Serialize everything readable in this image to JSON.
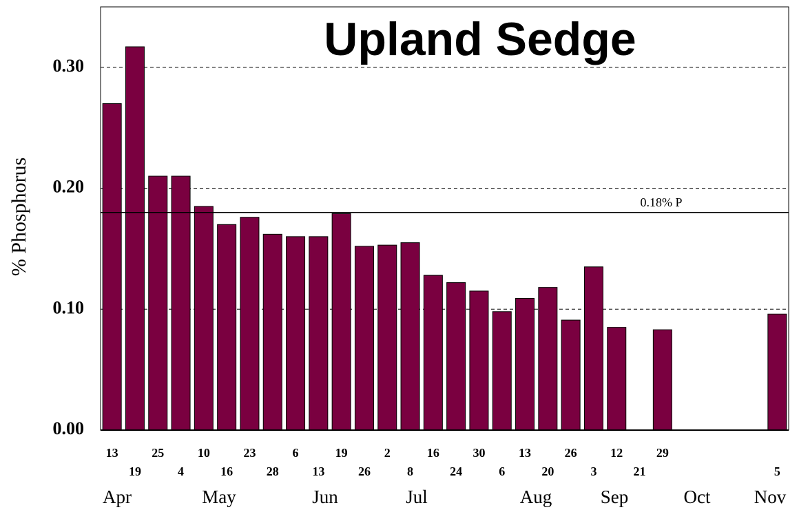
{
  "chart_data": {
    "type": "bar",
    "title": "Upland Sedge",
    "y_label": "% Phosphorus",
    "categories": [
      "13",
      "19",
      "25",
      "4",
      "10",
      "16",
      "23",
      "28",
      "6",
      "13",
      "19",
      "26",
      "2",
      "8",
      "16",
      "24",
      "30",
      "6",
      "13",
      "20",
      "26",
      "3",
      "12",
      "21",
      "29",
      null,
      null,
      null,
      null,
      "5"
    ],
    "values": [
      0.27,
      0.317,
      0.21,
      0.21,
      0.185,
      0.17,
      0.176,
      0.162,
      0.16,
      0.16,
      0.179,
      0.152,
      0.153,
      0.155,
      0.128,
      0.122,
      0.115,
      0.098,
      0.109,
      0.118,
      0.091,
      0.135,
      0.085,
      null,
      0.083,
      null,
      null,
      null,
      null,
      0.096
    ],
    "months": [
      "Apr",
      "May",
      "Jun",
      "Jul",
      "Aug",
      "Sep",
      "Oct",
      "Nov"
    ],
    "color": "#7a0040",
    "ylim": [
      0,
      0.35
    ],
    "yticks": [
      {
        "value": 0,
        "label": "0.00"
      },
      {
        "value": 0.1,
        "label": "0.10"
      },
      {
        "value": 0.2,
        "label": "0.20"
      },
      {
        "value": 0.3,
        "label": "0.30"
      }
    ],
    "grid": true,
    "reference_line": {
      "value": 0.18,
      "label": "0.18% P"
    }
  }
}
